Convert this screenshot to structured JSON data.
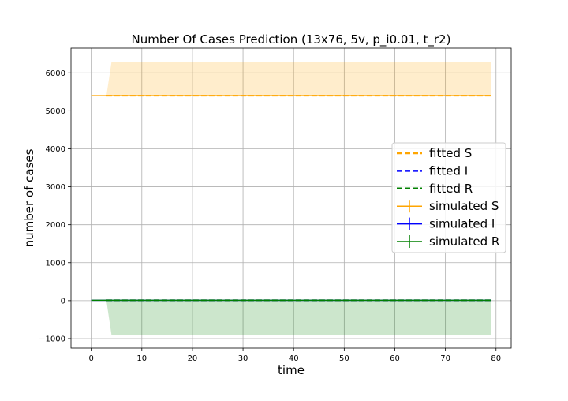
{
  "chart_data": {
    "type": "line",
    "title": "Number Of Cases Prediction (13x76, 5v, p_i0.01, t_r2)",
    "xlabel": "time",
    "ylabel": "number of cases",
    "xlim": [
      -4,
      83
    ],
    "ylim": [
      -1250,
      6650
    ],
    "xticks": [
      0,
      10,
      20,
      30,
      40,
      50,
      60,
      70,
      80
    ],
    "yticks": [
      -1000,
      0,
      1000,
      2000,
      3000,
      4000,
      5000,
      6000
    ],
    "grid": true,
    "legend_position": "center-right",
    "legend": [
      {
        "label": "fitted S",
        "color": "#ffa500",
        "style": "dashed"
      },
      {
        "label": "fitted I",
        "color": "#0000ff",
        "style": "dashed"
      },
      {
        "label": "fitted R",
        "color": "#008000",
        "style": "dashed"
      },
      {
        "label": "simulated S",
        "color": "#ffa500",
        "style": "errorbar"
      },
      {
        "label": "simulated I",
        "color": "#0000ff",
        "style": "errorbar"
      },
      {
        "label": "simulated R",
        "color": "#008000",
        "style": "errorbar"
      }
    ],
    "series": [
      {
        "name": "fitted S",
        "kind": "fitted",
        "color": "#ffa500",
        "x_range": [
          3,
          79
        ],
        "value": 5400
      },
      {
        "name": "fitted I",
        "kind": "fitted",
        "color": "#0000ff",
        "x_range": [
          3,
          79
        ],
        "value": 10
      },
      {
        "name": "fitted R",
        "kind": "fitted",
        "color": "#008000",
        "x_range": [
          3,
          79
        ],
        "value": 10
      },
      {
        "name": "simulated S",
        "kind": "simulated",
        "color": "#ffa500",
        "x_range": [
          0,
          79
        ],
        "value": 5400,
        "band": {
          "x": [
            0,
            3,
            4,
            79
          ],
          "lower": [
            5400,
            5400,
            5400,
            5400
          ],
          "upper": [
            5400,
            5400,
            6280,
            6280
          ]
        }
      },
      {
        "name": "simulated I",
        "kind": "simulated",
        "color": "#0000ff",
        "x_range": [
          0,
          79
        ],
        "value": 10
      },
      {
        "name": "simulated R",
        "kind": "simulated",
        "color": "#008000",
        "x_range": [
          0,
          79
        ],
        "value": 10,
        "band": {
          "x": [
            0,
            3,
            4,
            79
          ],
          "lower": [
            0,
            0,
            -900,
            -900
          ],
          "upper": [
            0,
            0,
            0,
            0
          ]
        }
      }
    ]
  }
}
